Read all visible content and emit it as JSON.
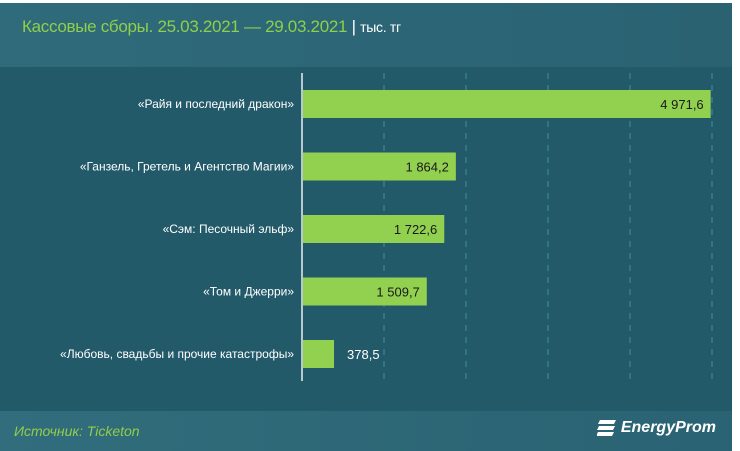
{
  "header": {
    "title": "Кассовые сборы. 25.03.2021 — 29.03.2021",
    "separator": " | ",
    "unit": "тыс. тг"
  },
  "footer": {
    "source": "Источник: Ticketon",
    "logo": "EnergyProm"
  },
  "colors": {
    "bar": "#92d050",
    "background": "#235a6a",
    "title": "#8fcf4a"
  },
  "chart_data": {
    "type": "bar",
    "orientation": "horizontal",
    "categories": [
      "«Райя и последний дракон»",
      "«Ганзель, Гретель и Агентство Магии»",
      "«Сэм: Песочный эльф»",
      "«Том и Джерри»",
      "«Любовь, свадьбы и прочие катастрофы»"
    ],
    "values": [
      4971.6,
      1864.2,
      1722.6,
      1509.7,
      378.5
    ],
    "labels": [
      "4 971,6",
      "1 864,2",
      "1 722,6",
      "1 509,7",
      "378,5"
    ],
    "xlim": [
      0,
      5000
    ],
    "grid": true
  }
}
